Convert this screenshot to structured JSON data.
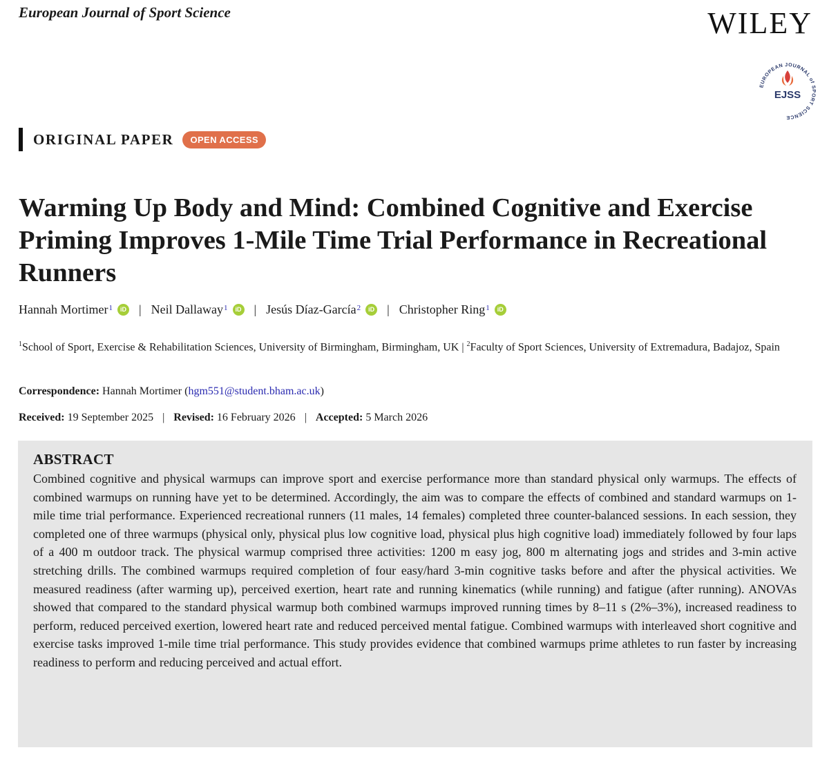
{
  "header": {
    "journal": "European Journal of Sport Science",
    "publisher": "WILEY",
    "logo_text": "EJSS",
    "logo_ring_text": "EUROPEAN JOURNAL of SPORT SCIENCE"
  },
  "paper_type": "ORIGINAL PAPER",
  "badge": "OPEN ACCESS",
  "title": "Warming Up Body and Mind: Combined Cognitive and Exercise Priming Improves 1-Mile Time Trial Performance in Recreational Runners",
  "authors": [
    {
      "name": "Hannah Mortimer",
      "affil": "1"
    },
    {
      "name": "Neil Dallaway",
      "affil": "1"
    },
    {
      "name": "Jesús Díaz-García",
      "affil": "2"
    },
    {
      "name": "Christopher Ring",
      "affil": "1"
    }
  ],
  "orcid_label": "iD",
  "author_sep": "|",
  "affiliations": {
    "a1_num": "1",
    "a1_text": "School of Sport, Exercise & Rehabilitation Sciences, University of Birmingham, Birmingham, UK",
    "sep": " | ",
    "a2_num": "2",
    "a2_text": "Faculty of Sport Sciences, University of Extremadura, Badajoz, Spain"
  },
  "correspondence": {
    "label": "Correspondence:",
    "name": "Hannah Mortimer",
    "email": "hgm551@student.bham.ac.uk"
  },
  "dates": {
    "received_label": "Received:",
    "received": "19 September 2025",
    "revised_label": "Revised:",
    "revised": "16 February 2026",
    "accepted_label": "Accepted:",
    "accepted": "5 March 2026",
    "sep": "|"
  },
  "abstract": {
    "heading": "ABSTRACT",
    "text": "Combined cognitive and physical warmups can improve sport and exercise performance more than standard physical only warmups. The effects of combined warmups on running have yet to be determined. Accordingly, the aim was to compare the effects of combined and standard warmups on 1-mile time trial performance. Experienced recreational runners (11 males, 14 females) completed three counter-balanced sessions. In each session, they completed one of three warmups (physical only, physical plus low cognitive load, physical plus high cognitive load) immediately followed by four laps of a 400 m outdoor track. The physical warmup comprised three activities: 1200 m easy jog, 800 m alternating jogs and strides and 3-min active stretching drills. The combined warmups required completion of four easy/hard 3-min cognitive tasks before and after the physical ac­tivities. We measured readiness (after warming up), perceived exertion, heart rate and running kinematics (while running) and fatigue (after running). ANOVAs showed that compared to the standard physical warmup both combined warmups improved running times by 8–11 s (2%–3%), increased readiness to perform, reduced perceived exertion, lowered heart rate and reduced perceived mental fatigue. Combined warmups with interleaved short cognitive and exercise tasks improved 1-mile time trial performance. This study provides evidence that combined warmups prime athletes to run faster by increasing readiness to perform and reducing perceived and actual effort."
  },
  "colors": {
    "badge": "#e0704a",
    "orcid": "#a6ce39",
    "link": "#2a2ab0",
    "abstract_bg": "#e6e6e6",
    "logo_red": "#d8403a",
    "logo_navy": "#2b3a6b"
  }
}
